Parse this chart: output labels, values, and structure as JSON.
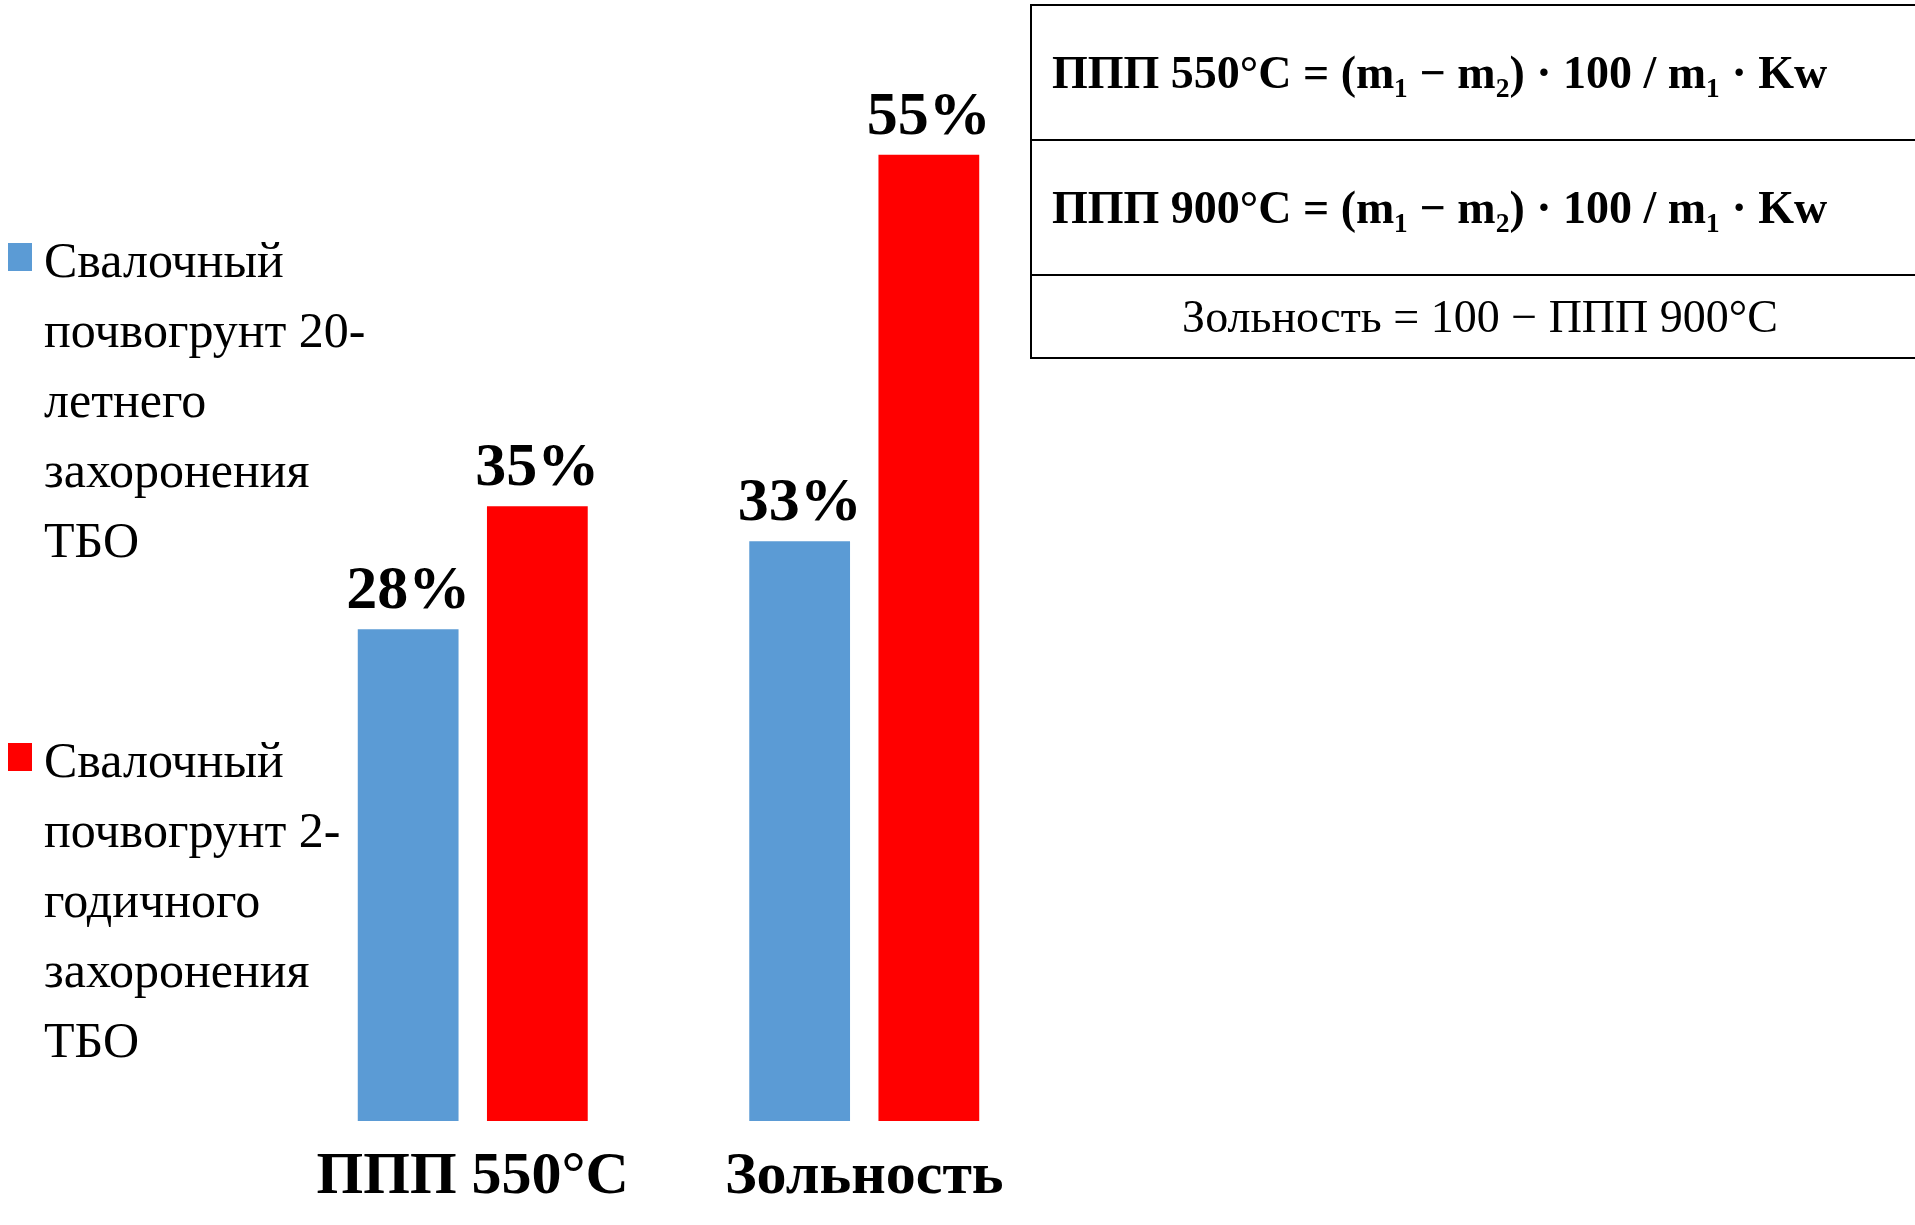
{
  "chart_data": {
    "type": "bar",
    "categories": [
      "ППП 550°C",
      "Зольность"
    ],
    "series": [
      {
        "name": "Свалочный почвогрунт 20-летнего захоронения ТБО",
        "color": "#5b9bd5",
        "values": [
          28,
          33
        ],
        "value_labels": [
          "28%",
          "33%"
        ]
      },
      {
        "name": "Свалочный почвогрунт 2-годичного захоронения ТБО",
        "color": "#ff0000",
        "values": [
          35,
          55
        ],
        "value_labels": [
          "35%",
          "55%"
        ]
      }
    ],
    "legend": "left",
    "grid": false,
    "annotations": [
      "ППП 550°C = (m₁ − m₂) · 100 / m₁ · Kw",
      "ППП 900°C = (m₁ − m₂) · 100 / m₁ · Kw",
      "Зольность = 100 − ППП 900°C"
    ]
  }
}
